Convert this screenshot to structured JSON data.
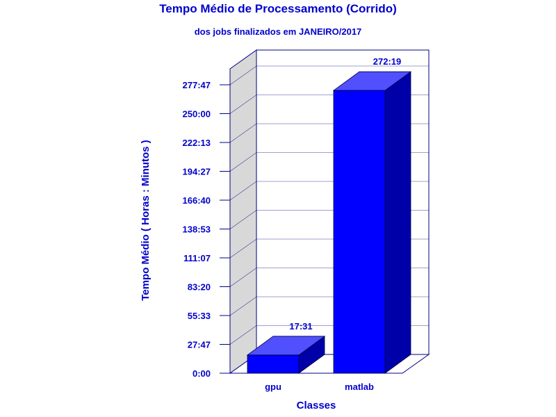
{
  "chart_data": {
    "type": "bar",
    "title": "Tempo Médio de Processamento (Corrido)",
    "subtitle": "dos jobs finalizados em JANEIRO/2017",
    "xlabel": "Classes",
    "ylabel": "Tempo Médio ( Horas : Minutos )",
    "categories": [
      "gpu",
      "matlab"
    ],
    "values_minutes": [
      1051,
      16339
    ],
    "value_labels": [
      "17:31",
      "272:19"
    ],
    "y_ticks": [
      "0:00",
      "27:47",
      "55:33",
      "83:20",
      "111:07",
      "138:53",
      "166:40",
      "194:27",
      "222:13",
      "250:00",
      "277:47"
    ],
    "ylim_minutes": [
      0,
      16667
    ],
    "grid": true,
    "legend": "none",
    "colors": {
      "bar_front": "#0000ff",
      "bar_top": "#5050ff",
      "bar_side": "#0000a8",
      "back_wall_side": "#d8d8d8",
      "grid": "#000080",
      "text": "#0000cc"
    }
  }
}
